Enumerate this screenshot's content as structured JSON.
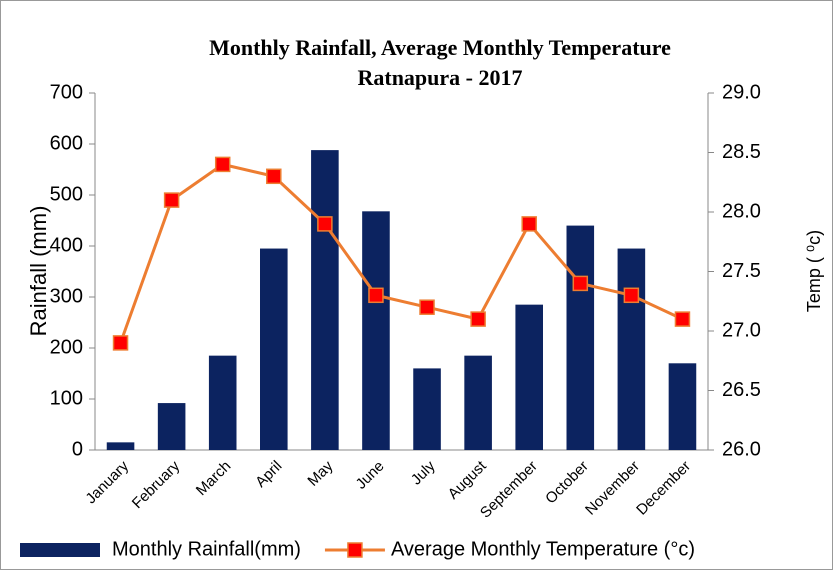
{
  "chart_data": {
    "type": "bar_line",
    "title": "Monthly Rainfall, Average Monthly Temperature",
    "subtitle": "Ratnapura - 2017",
    "y_label": "Rainfall (mm)",
    "y2_label": "Temp ( ⁰c)",
    "categories": [
      "January",
      "February",
      "March",
      "April",
      "May",
      "June",
      "July",
      "August",
      "September",
      "October",
      "November",
      "December"
    ],
    "series": [
      {
        "name": "Monthly Rainfall(mm)",
        "type": "bar",
        "color": "#0c2360",
        "values": [
          15,
          92,
          185,
          395,
          588,
          468,
          160,
          185,
          285,
          440,
          395,
          170
        ]
      },
      {
        "name": "Average Monthly Temperature (°c)",
        "type": "line",
        "axis": "y2",
        "color": "#ed7d31",
        "marker_color": "#ff0000",
        "values": [
          26.9,
          28.1,
          28.4,
          28.3,
          27.9,
          27.3,
          27.2,
          27.1,
          27.9,
          27.4,
          27.3,
          27.1
        ]
      }
    ],
    "ylim": [
      0,
      700
    ],
    "yticks": [
      0,
      100,
      200,
      300,
      400,
      500,
      600,
      700
    ],
    "y2lim": [
      26.0,
      29.0
    ],
    "y2ticks": [
      {
        "value": 26.0,
        "label": "26.0"
      },
      {
        "value": 26.5,
        "label": "26.5"
      },
      {
        "value": 27.0,
        "label": "27.0"
      },
      {
        "value": 27.5,
        "label": "27.5"
      },
      {
        "value": 28.0,
        "label": "28.0"
      },
      {
        "value": 28.5,
        "label": "28.5"
      },
      {
        "value": 29.0,
        "label": "29.0"
      }
    ],
    "legend": "bottom"
  }
}
